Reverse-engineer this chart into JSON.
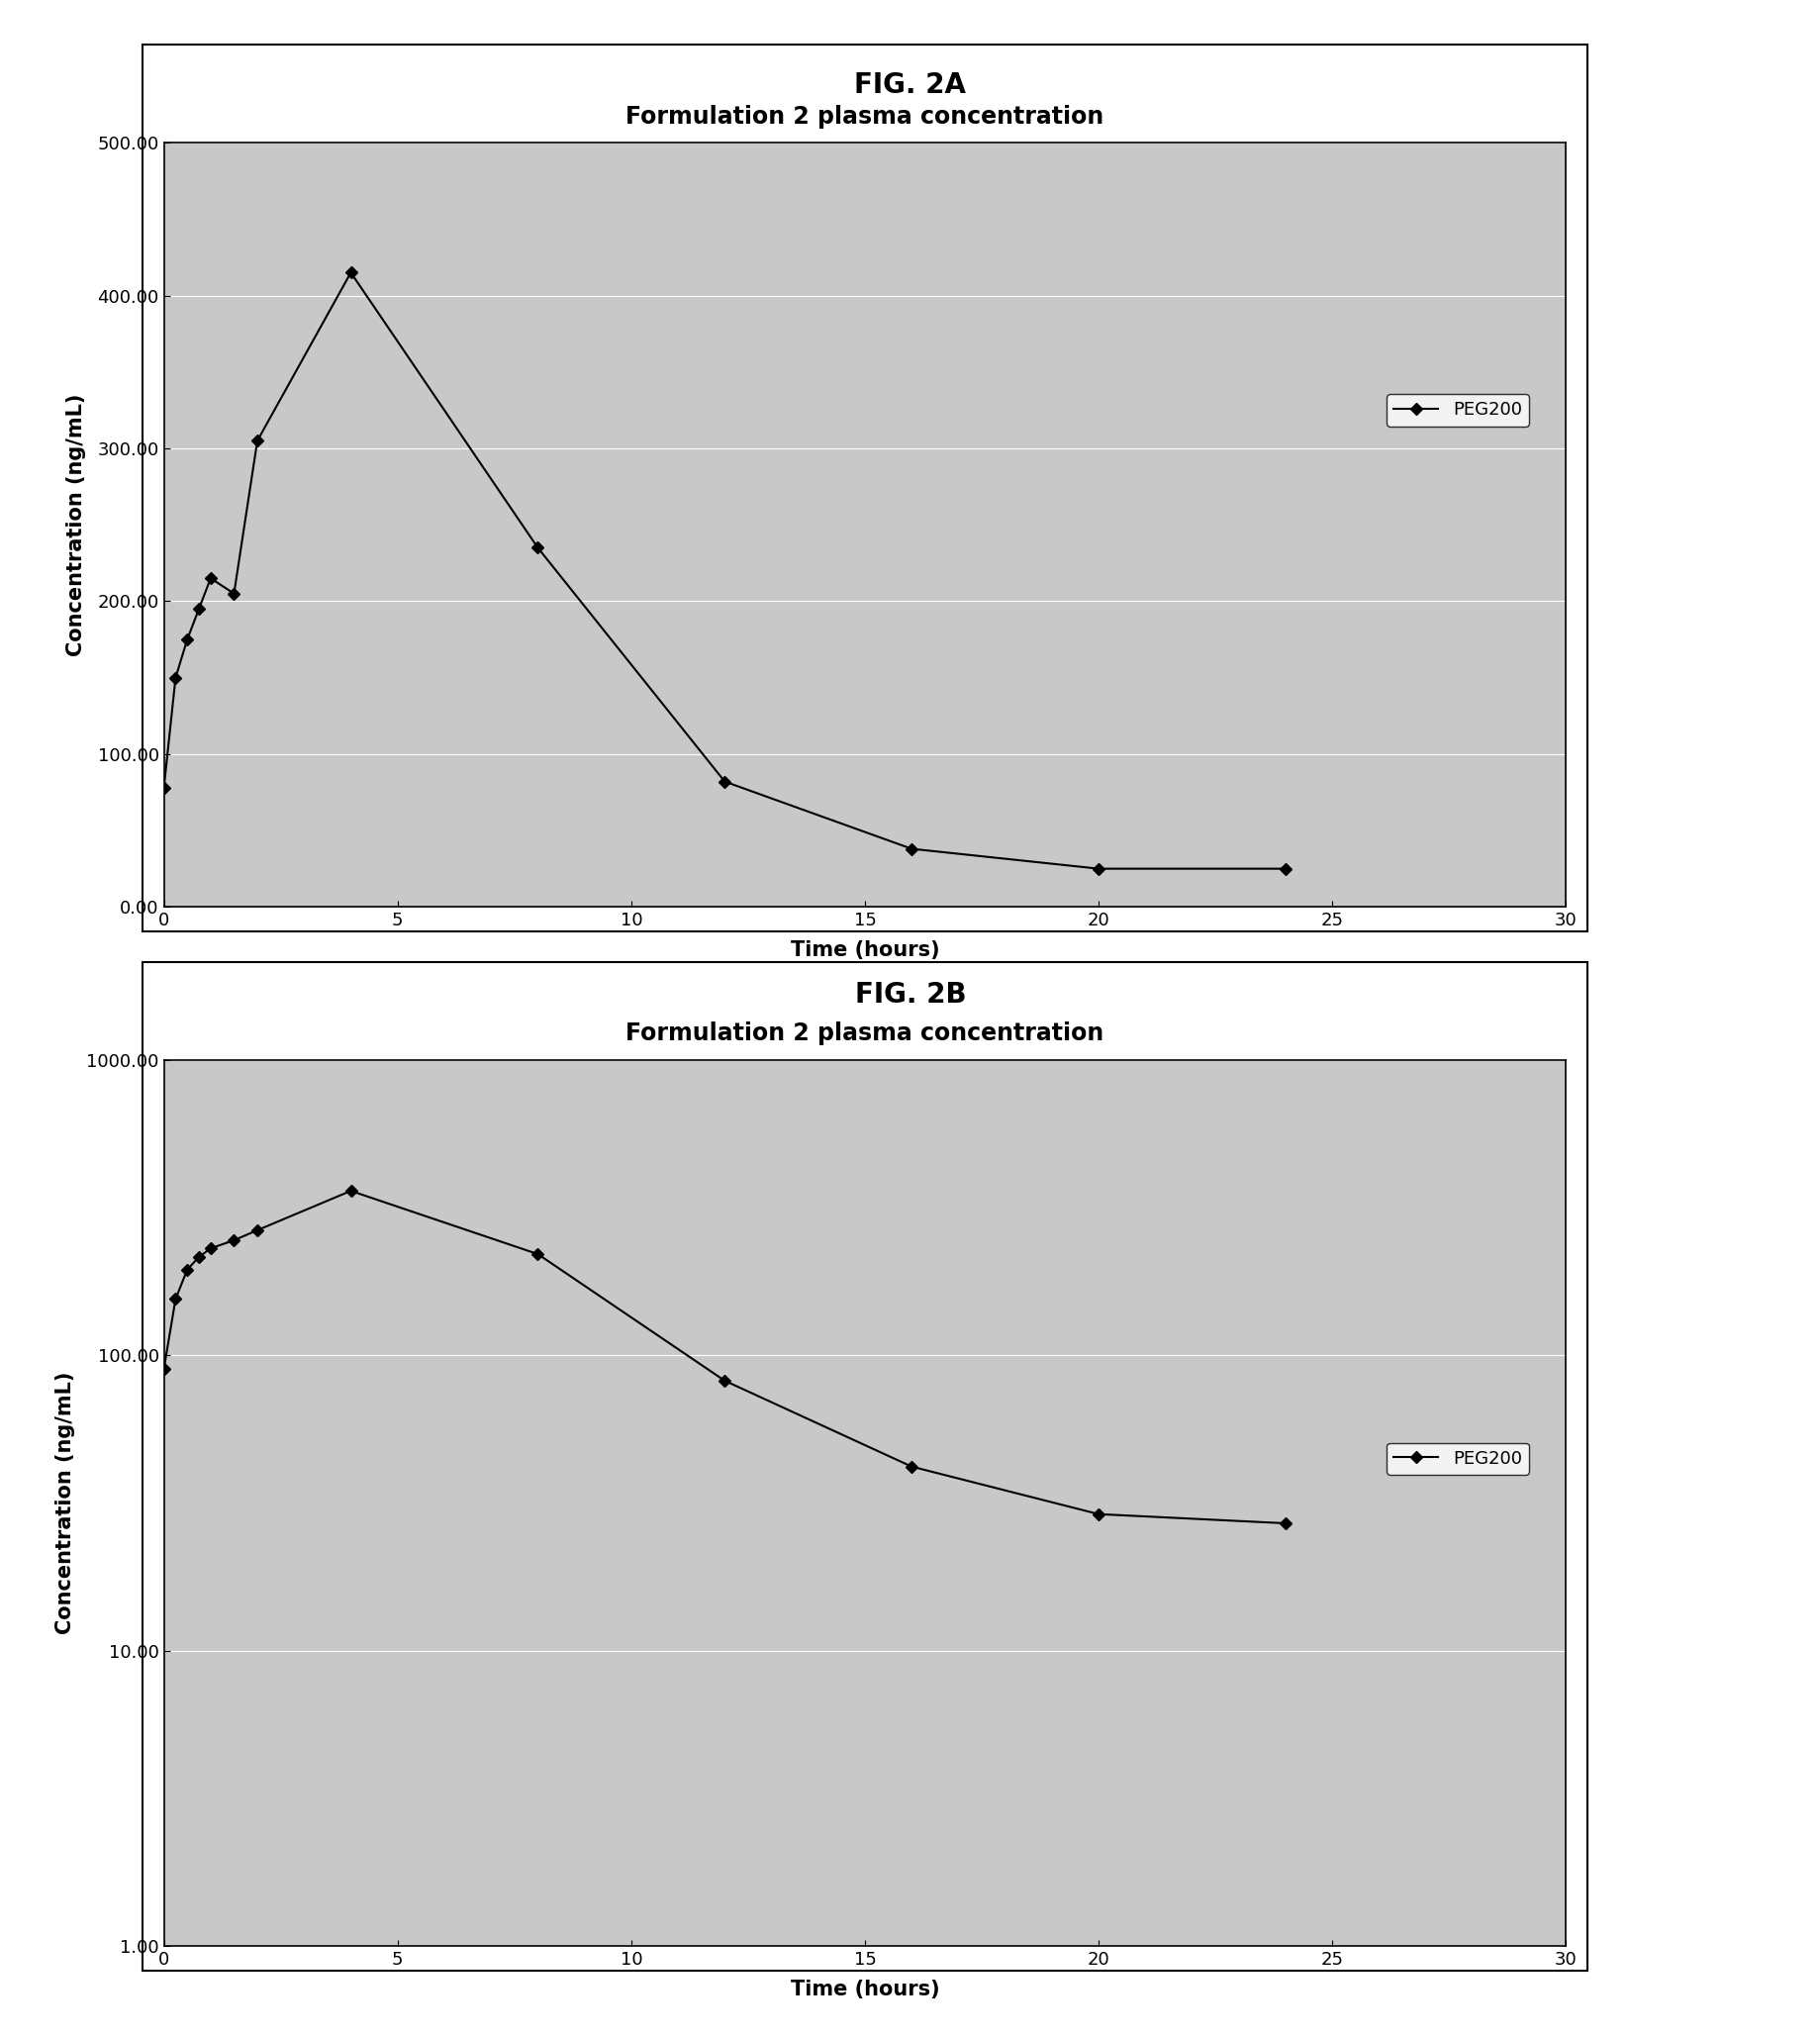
{
  "fig2a": {
    "title": "Formulation 2 plasma concentration",
    "xlabel": "Time (hours)",
    "ylabel": "Concentration (ng/mL)",
    "x": [
      0,
      0.25,
      0.5,
      0.75,
      1.0,
      1.5,
      2.0,
      4.0,
      8.0,
      12.0,
      16.0,
      20.0,
      24.0
    ],
    "y": [
      78,
      150,
      175,
      195,
      215,
      205,
      305,
      415,
      235,
      82,
      38,
      25,
      25
    ],
    "ylim": [
      0,
      500
    ],
    "yticks": [
      0.0,
      100.0,
      200.0,
      300.0,
      400.0,
      500.0
    ],
    "xlim": [
      0,
      30
    ],
    "xticks": [
      0,
      5,
      10,
      15,
      20,
      25,
      30
    ],
    "legend_label": "PEG200",
    "line_color": "#000000",
    "marker": "D",
    "marker_size": 6,
    "fig_label": "FIG. 2A"
  },
  "fig2b": {
    "title": "Formulation 2 plasma concentration",
    "xlabel": "Time (hours)",
    "ylabel": "Concentration (ng/mL)",
    "x": [
      0,
      0.25,
      0.5,
      0.75,
      1.0,
      1.5,
      2.0,
      4.0,
      8.0,
      12.0,
      16.0,
      20.0,
      24.0
    ],
    "y": [
      90,
      155,
      195,
      215,
      230,
      245,
      265,
      360,
      220,
      82,
      42,
      29,
      27
    ],
    "ylim_log": [
      1.0,
      1000.0
    ],
    "yticks_log": [
      1.0,
      10.0,
      100.0,
      1000.0
    ],
    "ytick_labels_log": [
      "1.00",
      "10.00",
      "100.00",
      "1000.00"
    ],
    "xlim": [
      0,
      30
    ],
    "xticks": [
      0,
      5,
      10,
      15,
      20,
      25,
      30
    ],
    "legend_label": "PEG200",
    "line_color": "#000000",
    "marker": "D",
    "marker_size": 6,
    "fig_label": "FIG. 2B"
  },
  "background_color": "#ffffff",
  "plot_bg_color": "#c8c8c8",
  "font_family": "Arial",
  "title_fontsize": 17,
  "label_fontsize": 15,
  "tick_fontsize": 13,
  "legend_fontsize": 13,
  "fig_label_fontsize": 20
}
